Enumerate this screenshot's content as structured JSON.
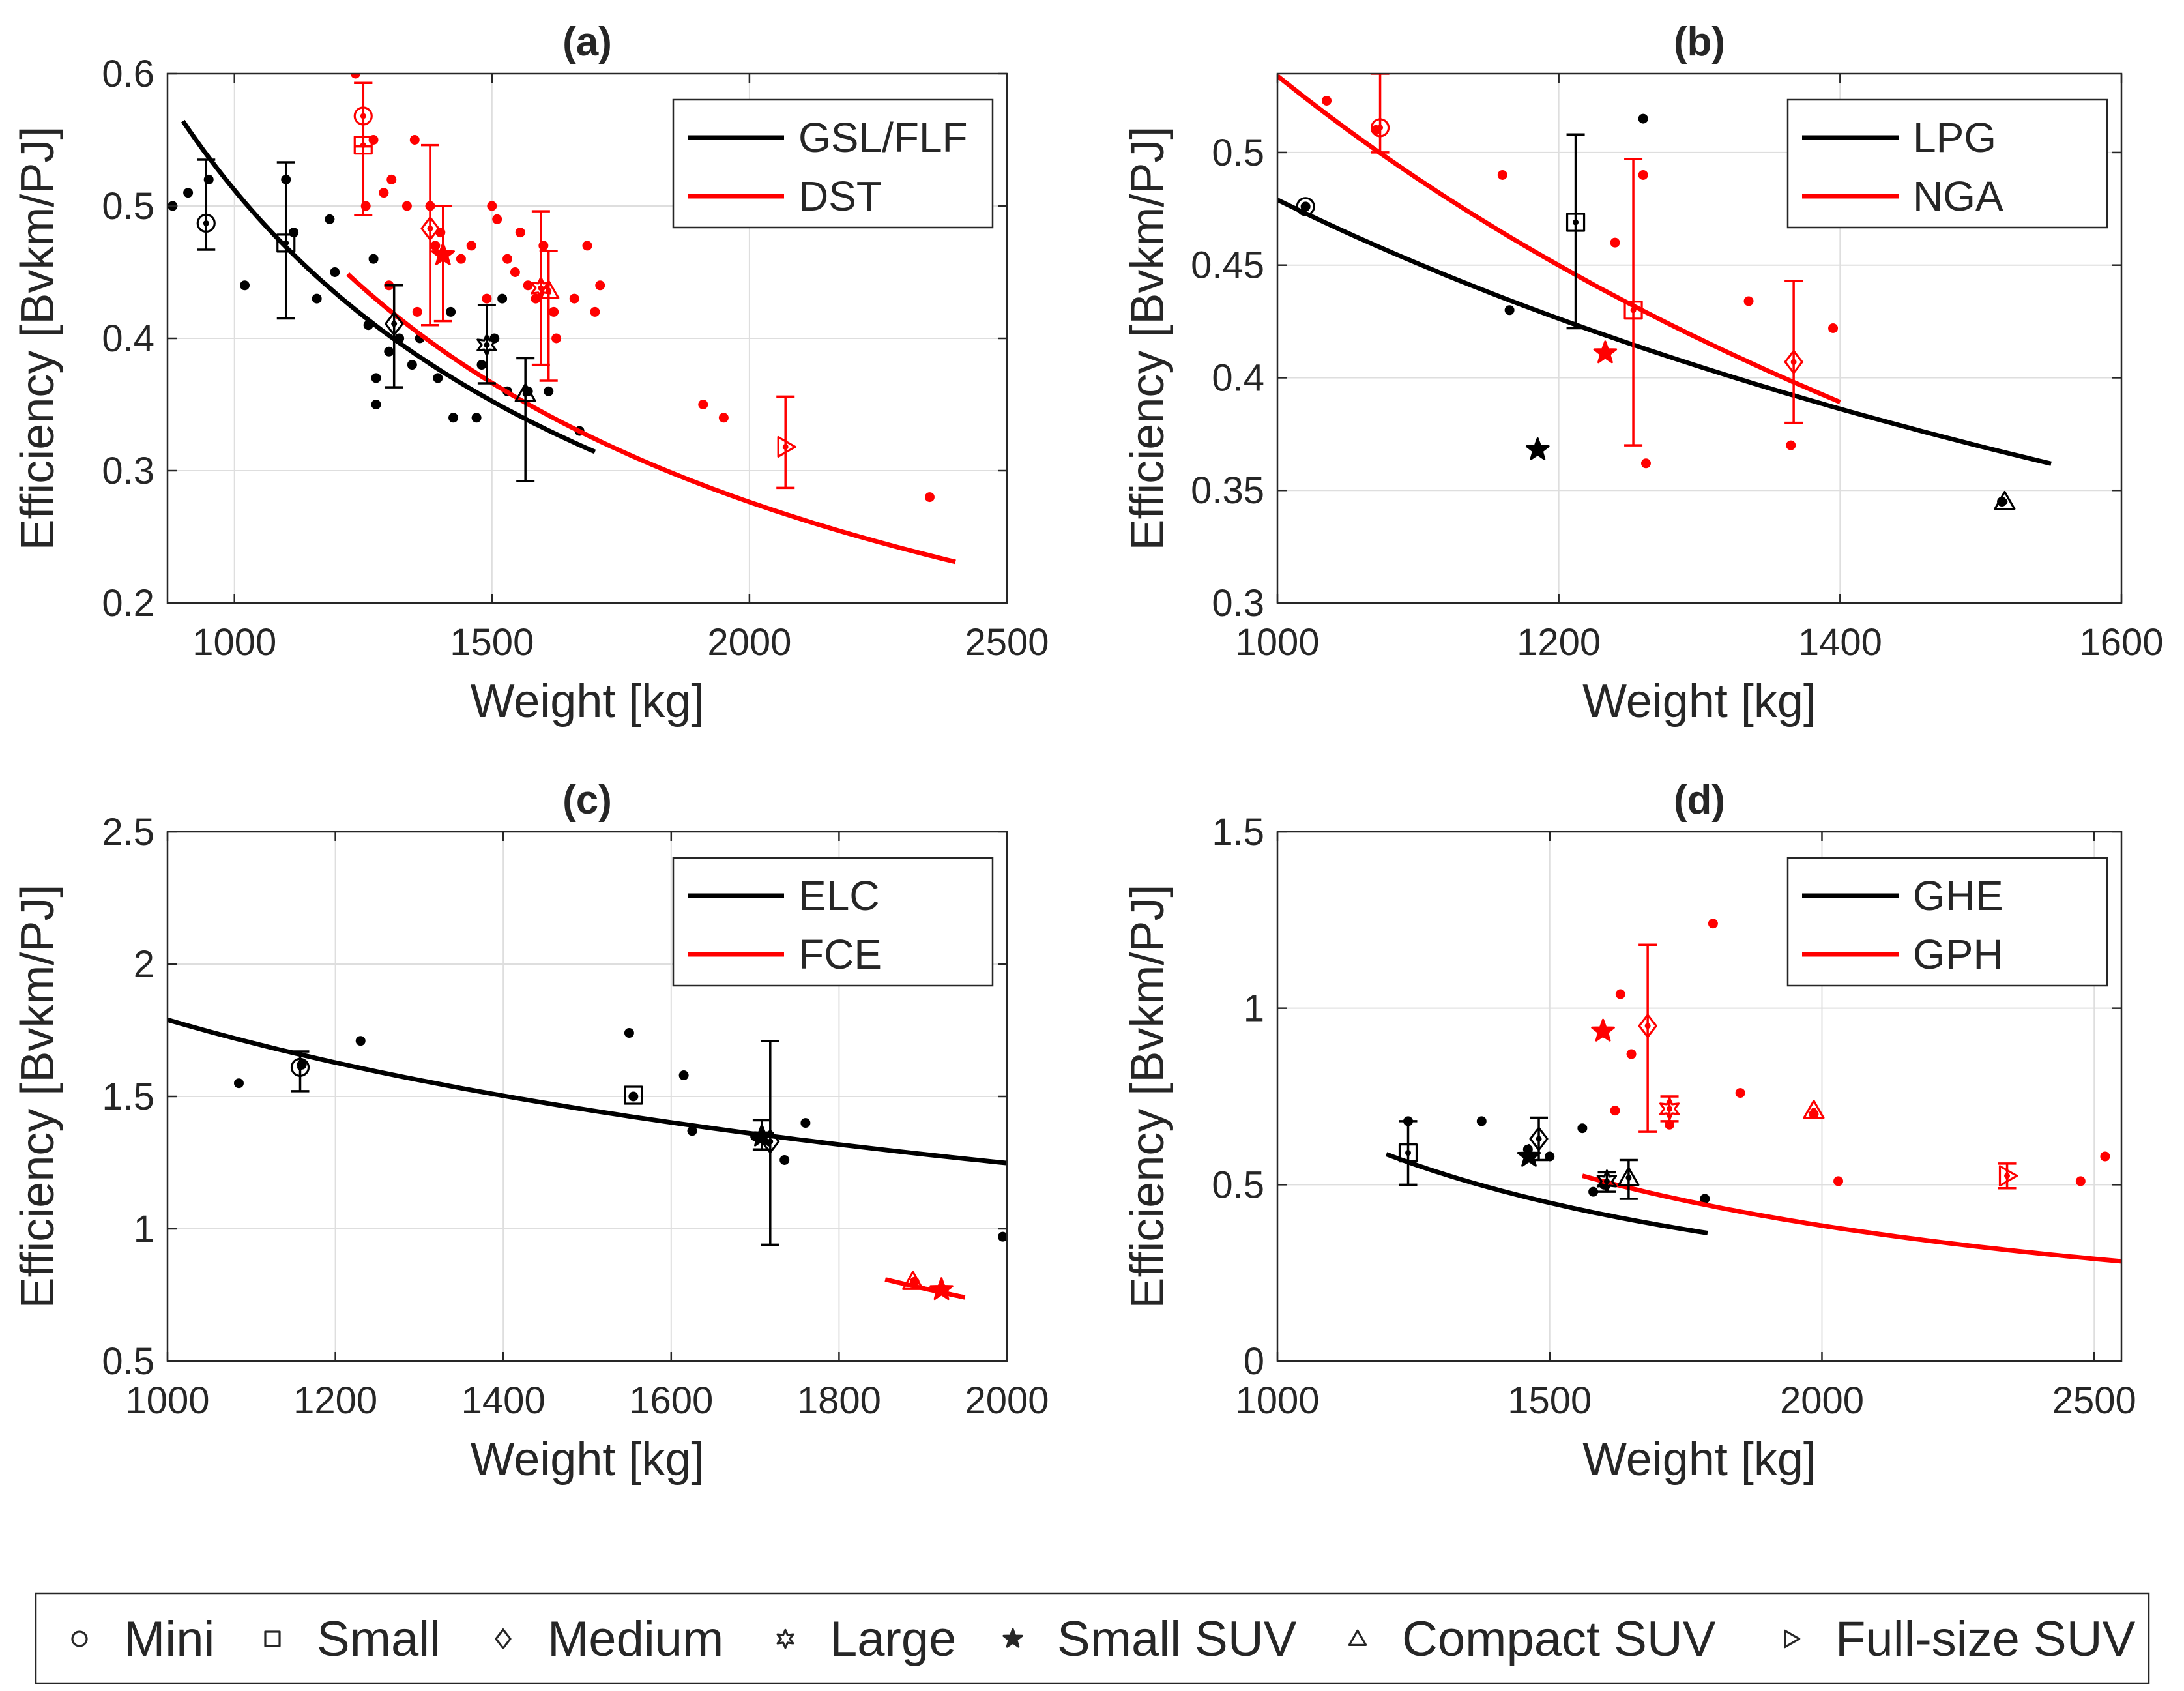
{
  "chart_data": [
    {
      "id": "a",
      "type": "scatter",
      "title": "(a)",
      "xlabel": "Weight [kg]",
      "ylabel": "Efficiency [Bvkm/PJ]",
      "xlim": [
        870,
        2500
      ],
      "ylim": [
        0.2,
        0.6
      ],
      "xticks": [
        1000,
        1500,
        2000,
        2500
      ],
      "yticks": [
        0.2,
        0.3,
        0.4,
        0.5,
        0.6
      ],
      "ytick_labels": [
        "0.2",
        "0.3",
        "0.4",
        "0.5",
        "0.6"
      ],
      "legend": [
        {
          "label": "GSL/FLF",
          "color": "#000000"
        },
        {
          "label": "DST",
          "color": "#ff0000"
        }
      ],
      "fits": [
        {
          "color": "#000000",
          "x": [
            900,
            1700
          ],
          "a": 0.512,
          "b": -0.92
        },
        {
          "color": "#ff0000",
          "x": [
            1220,
            2400
          ],
          "a": 0.545,
          "b": -0.98
        }
      ],
      "points": [
        {
          "color": "#000000",
          "xy": [
            [
              880,
              0.5
            ],
            [
              910,
              0.51
            ],
            [
              950,
              0.52
            ],
            [
              1020,
              0.44
            ],
            [
              1100,
              0.52
            ],
            [
              1115,
              0.48
            ],
            [
              1160,
              0.43
            ],
            [
              1185,
              0.49
            ],
            [
              1195,
              0.45
            ],
            [
              1260,
              0.41
            ],
            [
              1270,
              0.46
            ],
            [
              1275,
              0.37
            ],
            [
              1275,
              0.35
            ],
            [
              1300,
              0.39
            ],
            [
              1320,
              0.4
            ],
            [
              1345,
              0.38
            ],
            [
              1360,
              0.4
            ],
            [
              1395,
              0.37
            ],
            [
              1420,
              0.42
            ],
            [
              1425,
              0.34
            ],
            [
              1470,
              0.34
            ],
            [
              1480,
              0.38
            ],
            [
              1505,
              0.4
            ],
            [
              1520,
              0.43
            ],
            [
              1530,
              0.36
            ],
            [
              1570,
              0.36
            ],
            [
              1610,
              0.36
            ],
            [
              1670,
              0.33
            ]
          ]
        },
        {
          "color": "#ff0000",
          "xy": [
            [
              1235,
              0.6
            ],
            [
              1255,
              0.5
            ],
            [
              1270,
              0.55
            ],
            [
              1290,
              0.51
            ],
            [
              1300,
              0.44
            ],
            [
              1305,
              0.52
            ],
            [
              1335,
              0.5
            ],
            [
              1350,
              0.55
            ],
            [
              1355,
              0.42
            ],
            [
              1380,
              0.5
            ],
            [
              1390,
              0.47
            ],
            [
              1400,
              0.48
            ],
            [
              1440,
              0.46
            ],
            [
              1460,
              0.47
            ],
            [
              1490,
              0.43
            ],
            [
              1500,
              0.5
            ],
            [
              1510,
              0.49
            ],
            [
              1530,
              0.46
            ],
            [
              1545,
              0.45
            ],
            [
              1555,
              0.48
            ],
            [
              1570,
              0.44
            ],
            [
              1585,
              0.43
            ],
            [
              1600,
              0.47
            ],
            [
              1620,
              0.42
            ],
            [
              1625,
              0.4
            ],
            [
              1660,
              0.43
            ],
            [
              1685,
              0.47
            ],
            [
              1700,
              0.42
            ],
            [
              1710,
              0.44
            ],
            [
              1910,
              0.35
            ],
            [
              1950,
              0.34
            ],
            [
              2350,
              0.28
            ]
          ]
        }
      ],
      "markers": [
        {
          "shape": "circle",
          "color": "#000000",
          "x": 945,
          "y": 0.487,
          "lo": 0.467,
          "hi": 0.535
        },
        {
          "shape": "square",
          "color": "#000000",
          "x": 1100,
          "y": 0.472,
          "lo": 0.415,
          "hi": 0.533
        },
        {
          "shape": "diamond",
          "color": "#000000",
          "x": 1310,
          "y": 0.411,
          "lo": 0.363,
          "hi": 0.44
        },
        {
          "shape": "hexstar",
          "color": "#000000",
          "x": 1490,
          "y": 0.395,
          "lo": 0.366,
          "hi": 0.425
        },
        {
          "shape": "triangle",
          "color": "#000000",
          "x": 1565,
          "y": 0.358,
          "lo": 0.292,
          "hi": 0.385
        },
        {
          "shape": "circle",
          "color": "#ff0000",
          "x": 1250,
          "y": 0.568,
          "lo": 0.545,
          "hi": 0.593
        },
        {
          "shape": "square",
          "color": "#ff0000",
          "x": 1250,
          "y": 0.546,
          "lo": 0.493,
          "hi": 0.593
        },
        {
          "shape": "diamond",
          "color": "#ff0000",
          "x": 1380,
          "y": 0.483,
          "lo": 0.41,
          "hi": 0.546
        },
        {
          "shape": "star",
          "color": "#ff0000",
          "x": 1405,
          "y": 0.463,
          "lo": 0.413,
          "hi": 0.5
        },
        {
          "shape": "hexstar",
          "color": "#ff0000",
          "x": 1595,
          "y": 0.438,
          "lo": 0.38,
          "hi": 0.496
        },
        {
          "shape": "triangle",
          "color": "#ff0000",
          "x": 1610,
          "y": 0.436,
          "lo": 0.368,
          "hi": 0.466
        },
        {
          "shape": "tri_right",
          "color": "#ff0000",
          "x": 2070,
          "y": 0.318,
          "lo": 0.287,
          "hi": 0.356
        }
      ]
    },
    {
      "id": "b",
      "type": "scatter",
      "title": "(b)",
      "xlabel": "Weight [kg]",
      "ylabel": "Efficiency [Bvkm/PJ]",
      "xlim": [
        1000,
        1600
      ],
      "ylim": [
        0.3,
        0.535
      ],
      "xticks": [
        1000,
        1200,
        1400,
        1600
      ],
      "yticks": [
        0.3,
        0.35,
        0.4,
        0.45,
        0.5
      ],
      "ytick_labels": [
        "0.3",
        "0.35",
        "0.4",
        "0.45",
        "0.5"
      ],
      "legend": [
        {
          "label": "LPG",
          "color": "#000000"
        },
        {
          "label": "NGA",
          "color": "#ff0000"
        }
      ],
      "fits": [
        {
          "color": "#000000",
          "x": [
            1000,
            1550
          ],
          "a": 0.479,
          "b": -0.64
        },
        {
          "color": "#ff0000",
          "x": [
            1000,
            1400
          ],
          "a": 0.534,
          "b": -0.94
        }
      ],
      "points": [
        {
          "color": "#000000",
          "xy": [
            [
              1020,
              0.476
            ],
            [
              1165,
              0.43
            ],
            [
              1260,
              0.515
            ],
            [
              1515,
              0.345
            ]
          ]
        },
        {
          "color": "#ff0000",
          "xy": [
            [
              1035,
              0.523
            ],
            [
              1070,
              0.51
            ],
            [
              1160,
              0.49
            ],
            [
              1240,
              0.46
            ],
            [
              1260,
              0.49
            ],
            [
              1262,
              0.362
            ],
            [
              1335,
              0.434
            ],
            [
              1365,
              0.37
            ],
            [
              1395,
              0.422
            ]
          ]
        }
      ],
      "markers": [
        {
          "shape": "circle",
          "color": "#000000",
          "x": 1020,
          "y": 0.476,
          "lo": null,
          "hi": null
        },
        {
          "shape": "square",
          "color": "#000000",
          "x": 1212,
          "y": 0.469,
          "lo": 0.422,
          "hi": 0.508
        },
        {
          "shape": "star",
          "color": "#000000",
          "x": 1185,
          "y": 0.368,
          "lo": null,
          "hi": null
        },
        {
          "shape": "triangle",
          "color": "#000000",
          "x": 1517,
          "y": 0.345,
          "lo": null,
          "hi": null
        },
        {
          "shape": "circle",
          "color": "#ff0000",
          "x": 1073,
          "y": 0.511,
          "lo": 0.5,
          "hi": 0.535
        },
        {
          "shape": "square",
          "color": "#ff0000",
          "x": 1253,
          "y": 0.43,
          "lo": 0.37,
          "hi": 0.497
        },
        {
          "shape": "star",
          "color": "#ff0000",
          "x": 1233,
          "y": 0.411,
          "lo": null,
          "hi": null
        },
        {
          "shape": "diamond",
          "color": "#ff0000",
          "x": 1367,
          "y": 0.407,
          "lo": 0.38,
          "hi": 0.443
        }
      ]
    },
    {
      "id": "c",
      "type": "scatter",
      "title": "(c)",
      "xlabel": "Weight [kg]",
      "ylabel": "Efficiency [Bvkm/PJ]",
      "xlim": [
        1000,
        2000
      ],
      "ylim": [
        0.5,
        2.5
      ],
      "xticks": [
        1000,
        1200,
        1400,
        1600,
        1800,
        2000
      ],
      "yticks": [
        0.5,
        1,
        1.5,
        2,
        2.5
      ],
      "ytick_labels": [
        "0.5",
        "1",
        "1.5",
        "2",
        "2.5"
      ],
      "legend": [
        {
          "label": "ELC",
          "color": "#000000"
        },
        {
          "label": "FCE",
          "color": "#ff0000"
        }
      ],
      "fits": [
        {
          "color": "#000000",
          "x": [
            1000,
            2000
          ],
          "a": 1.79,
          "b": -0.52
        },
        {
          "color": "#ff0000",
          "x": [
            1855,
            1950
          ],
          "a": 2.4,
          "b": -1.76
        }
      ],
      "points": [
        {
          "color": "#000000",
          "xy": [
            [
              1085,
              1.55
            ],
            [
              1160,
              1.62
            ],
            [
              1230,
              1.71
            ],
            [
              1550,
              1.74
            ],
            [
              1555,
              1.5
            ],
            [
              1615,
              1.58
            ],
            [
              1625,
              1.37
            ],
            [
              1700,
              1.35
            ],
            [
              1735,
              1.26
            ],
            [
              1760,
              1.4
            ],
            [
              1995,
              0.97
            ]
          ]
        },
        {
          "color": "#ff0000",
          "xy": [
            [
              1890,
              0.8
            ],
            [
              1925,
              0.77
            ]
          ]
        }
      ],
      "markers": [
        {
          "shape": "circle",
          "color": "#000000",
          "x": 1158,
          "y": 1.61,
          "lo": 1.52,
          "hi": 1.67
        },
        {
          "shape": "square",
          "color": "#000000",
          "x": 1555,
          "y": 1.505,
          "lo": null,
          "hi": null
        },
        {
          "shape": "diamond",
          "color": "#000000",
          "x": 1718,
          "y": 1.33,
          "lo": 0.94,
          "hi": 1.71
        },
        {
          "shape": "star",
          "color": "#000000",
          "x": 1708,
          "y": 1.35,
          "lo": 1.3,
          "hi": 1.41
        },
        {
          "shape": "triangle",
          "color": "#ff0000",
          "x": 1888,
          "y": 0.8,
          "lo": null,
          "hi": null
        },
        {
          "shape": "star",
          "color": "#ff0000",
          "x": 1922,
          "y": 0.77,
          "lo": null,
          "hi": null
        }
      ]
    },
    {
      "id": "d",
      "type": "scatter",
      "title": "(d)",
      "xlabel": "Weight [kg]",
      "ylabel": "Efficiency [Bvkm/PJ]",
      "xlim": [
        1000,
        2550
      ],
      "ylim": [
        0,
        1.5
      ],
      "xticks": [
        1000,
        1500,
        2000,
        2500
      ],
      "yticks": [
        0,
        0.5,
        1,
        1.5
      ],
      "ytick_labels": [
        "0",
        "0.5",
        "1",
        "1.5"
      ],
      "legend": [
        {
          "label": "GHE",
          "color": "#000000"
        },
        {
          "label": "GPH",
          "color": "#ff0000"
        }
      ],
      "fits": [
        {
          "color": "#000000",
          "x": [
            1200,
            1790
          ],
          "a": 0.73,
          "b": -1.2
        },
        {
          "color": "#ff0000",
          "x": [
            1560,
            2550
          ],
          "a": 0.92,
          "b": -1.26
        }
      ],
      "points": [
        {
          "color": "#000000",
          "xy": [
            [
              1240,
              0.68
            ],
            [
              1375,
              0.68
            ],
            [
              1460,
              0.6
            ],
            [
              1500,
              0.58
            ],
            [
              1560,
              0.66
            ],
            [
              1580,
              0.48
            ],
            [
              1600,
              0.5
            ],
            [
              1785,
              0.46
            ]
          ]
        },
        {
          "color": "#ff0000",
          "xy": [
            [
              1600,
              0.93
            ],
            [
              1620,
              0.71
            ],
            [
              1630,
              1.04
            ],
            [
              1650,
              0.87
            ],
            [
              1720,
              0.67
            ],
            [
              1800,
              1.24
            ],
            [
              1850,
              0.76
            ],
            [
              1985,
              0.7
            ],
            [
              2030,
              0.51
            ],
            [
              2475,
              0.51
            ],
            [
              2520,
              0.58
            ]
          ]
        }
      ],
      "markers": [
        {
          "shape": "square",
          "color": "#000000",
          "x": 1240,
          "y": 0.59,
          "lo": 0.5,
          "hi": 0.68
        },
        {
          "shape": "star",
          "color": "#000000",
          "x": 1462,
          "y": 0.58,
          "lo": null,
          "hi": null
        },
        {
          "shape": "diamond",
          "color": "#000000",
          "x": 1480,
          "y": 0.63,
          "lo": 0.57,
          "hi": 0.69
        },
        {
          "shape": "hexstar",
          "color": "#000000",
          "x": 1605,
          "y": 0.51,
          "lo": 0.48,
          "hi": 0.535
        },
        {
          "shape": "triangle",
          "color": "#000000",
          "x": 1645,
          "y": 0.52,
          "lo": 0.46,
          "hi": 0.57
        },
        {
          "shape": "star",
          "color": "#ff0000",
          "x": 1598,
          "y": 0.935,
          "lo": null,
          "hi": null
        },
        {
          "shape": "diamond",
          "color": "#ff0000",
          "x": 1680,
          "y": 0.95,
          "lo": 0.65,
          "hi": 1.18
        },
        {
          "shape": "hexstar",
          "color": "#ff0000",
          "x": 1720,
          "y": 0.715,
          "lo": 0.68,
          "hi": 0.75
        },
        {
          "shape": "triangle",
          "color": "#ff0000",
          "x": 1985,
          "y": 0.71,
          "lo": null,
          "hi": null
        },
        {
          "shape": "tri_right",
          "color": "#ff0000",
          "x": 2340,
          "y": 0.525,
          "lo": 0.49,
          "hi": 0.56
        }
      ]
    }
  ],
  "shape_legend": [
    {
      "shape": "circle",
      "label": "Mini"
    },
    {
      "shape": "square",
      "label": "Small"
    },
    {
      "shape": "diamond",
      "label": "Medium"
    },
    {
      "shape": "hexstar",
      "label": "Large"
    },
    {
      "shape": "star",
      "label": "Small SUV"
    },
    {
      "shape": "triangle",
      "label": "Compact SUV"
    },
    {
      "shape": "tri_right",
      "label": "Full-size SUV"
    }
  ]
}
